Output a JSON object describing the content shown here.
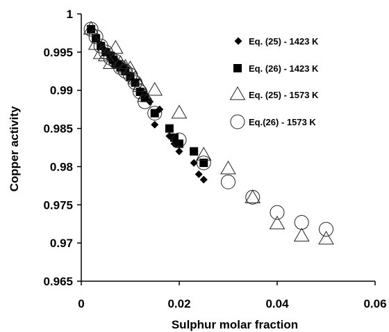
{
  "chart_data": {
    "type": "scatter",
    "xlabel": "Sulphur molar fraction",
    "ylabel": "Copper activity",
    "xlim": [
      0,
      0.06
    ],
    "ylim": [
      0.965,
      1
    ],
    "xticks": [
      0,
      0.02,
      0.04,
      0.06
    ],
    "xtick_labels": [
      "0",
      "0.02",
      "0.04",
      "0.06"
    ],
    "yticks": [
      0.965,
      0.97,
      0.975,
      0.98,
      0.985,
      0.99,
      0.995,
      1
    ],
    "ytick_labels": [
      "0.965",
      "0.97",
      "0.975",
      "0.98",
      "0.985",
      "0.99",
      "0.995",
      "1"
    ],
    "grid": false,
    "legend_position": "top-right",
    "series": [
      {
        "name": "Eq. (25) - 1423 K",
        "marker": "filled-diamond",
        "points": [
          [
            0.002,
            0.998
          ],
          [
            0.003,
            0.997
          ],
          [
            0.004,
            0.996
          ],
          [
            0.0045,
            0.9955
          ],
          [
            0.005,
            0.995
          ],
          [
            0.006,
            0.9945
          ],
          [
            0.007,
            0.994
          ],
          [
            0.008,
            0.9935
          ],
          [
            0.009,
            0.993
          ],
          [
            0.01,
            0.992
          ],
          [
            0.011,
            0.991
          ],
          [
            0.012,
            0.99
          ],
          [
            0.013,
            0.9895
          ],
          [
            0.014,
            0.9885
          ],
          [
            0.015,
            0.9855
          ],
          [
            0.016,
            0.9875
          ],
          [
            0.018,
            0.984
          ],
          [
            0.019,
            0.983
          ],
          [
            0.02,
            0.982
          ],
          [
            0.023,
            0.9805
          ],
          [
            0.024,
            0.979
          ],
          [
            0.025,
            0.9783
          ]
        ]
      },
      {
        "name": "Eq. (26) - 1423 K",
        "marker": "filled-square",
        "points": [
          [
            0.002,
            0.998
          ],
          [
            0.003,
            0.9968
          ],
          [
            0.004,
            0.9958
          ],
          [
            0.005,
            0.995
          ],
          [
            0.006,
            0.9945
          ],
          [
            0.0065,
            0.994
          ],
          [
            0.007,
            0.9935
          ],
          [
            0.008,
            0.993
          ],
          [
            0.009,
            0.9925
          ],
          [
            0.01,
            0.9918
          ],
          [
            0.011,
            0.991
          ],
          [
            0.012,
            0.9898
          ],
          [
            0.013,
            0.989
          ],
          [
            0.015,
            0.987
          ],
          [
            0.018,
            0.985
          ],
          [
            0.019,
            0.9838
          ],
          [
            0.02,
            0.983
          ],
          [
            0.023,
            0.982
          ],
          [
            0.025,
            0.9805
          ]
        ]
      },
      {
        "name": "Eq. (25) - 1573 K",
        "marker": "open-triangle",
        "points": [
          [
            0.002,
            0.998
          ],
          [
            0.003,
            0.996
          ],
          [
            0.004,
            0.9948
          ],
          [
            0.005,
            0.9945
          ],
          [
            0.006,
            0.9935
          ],
          [
            0.007,
            0.9955
          ],
          [
            0.008,
            0.9935
          ],
          [
            0.009,
            0.993
          ],
          [
            0.01,
            0.9928
          ],
          [
            0.011,
            0.9915
          ],
          [
            0.012,
            0.9905
          ],
          [
            0.013,
            0.9892
          ],
          [
            0.015,
            0.99
          ],
          [
            0.02,
            0.987
          ],
          [
            0.025,
            0.9815
          ],
          [
            0.03,
            0.9797
          ],
          [
            0.035,
            0.9759
          ],
          [
            0.04,
            0.9725
          ],
          [
            0.045,
            0.9709
          ],
          [
            0.05,
            0.9705
          ]
        ]
      },
      {
        "name": "Eq.(26) - 1573 K",
        "marker": "open-circle",
        "points": [
          [
            0.002,
            0.998
          ],
          [
            0.003,
            0.997
          ],
          [
            0.004,
            0.9958
          ],
          [
            0.005,
            0.995
          ],
          [
            0.006,
            0.9942
          ],
          [
            0.007,
            0.9938
          ],
          [
            0.008,
            0.993
          ],
          [
            0.009,
            0.9925
          ],
          [
            0.01,
            0.992
          ],
          [
            0.011,
            0.991
          ],
          [
            0.012,
            0.9898
          ],
          [
            0.013,
            0.9885
          ],
          [
            0.015,
            0.987
          ],
          [
            0.02,
            0.9835
          ],
          [
            0.025,
            0.9805
          ],
          [
            0.03,
            0.978
          ],
          [
            0.035,
            0.976
          ],
          [
            0.04,
            0.974
          ],
          [
            0.045,
            0.9727
          ],
          [
            0.05,
            0.9718
          ]
        ]
      }
    ]
  }
}
